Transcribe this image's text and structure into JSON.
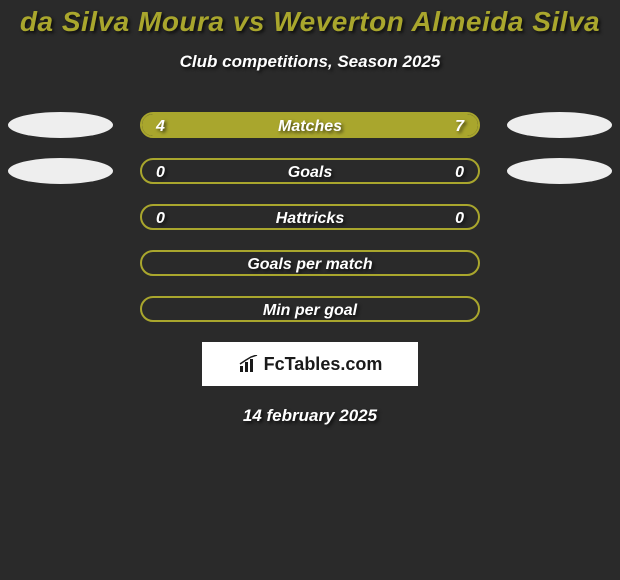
{
  "title": {
    "text": "da Silva Moura vs Weverton Almeida Silva",
    "color": "#a9a62d"
  },
  "subtitle": "Club competitions, Season 2025",
  "date": "14 february 2025",
  "logo": "FcTables.com",
  "colors": {
    "player1_shape": "#eeeeee",
    "player2_shape": "#eeeeee",
    "bar_border": "#a9a62d",
    "bar_background": "#2a2a2a",
    "fill_player1": "#a9a62d",
    "fill_player2": "#a9a62d",
    "background": "#2a2a2a"
  },
  "stats": [
    {
      "label": "Matches",
      "left_value": "4",
      "right_value": "7",
      "left_pct": 36.4,
      "right_pct": 63.6,
      "show_ellipses": true
    },
    {
      "label": "Goals",
      "left_value": "0",
      "right_value": "0",
      "left_pct": 0,
      "right_pct": 0,
      "show_ellipses": true
    },
    {
      "label": "Hattricks",
      "left_value": "0",
      "right_value": "0",
      "left_pct": 0,
      "right_pct": 0,
      "show_ellipses": false
    },
    {
      "label": "Goals per match",
      "left_value": "",
      "right_value": "",
      "left_pct": 0,
      "right_pct": 0,
      "show_ellipses": false
    },
    {
      "label": "Min per goal",
      "left_value": "",
      "right_value": "",
      "left_pct": 0,
      "right_pct": 0,
      "show_ellipses": false
    }
  ]
}
